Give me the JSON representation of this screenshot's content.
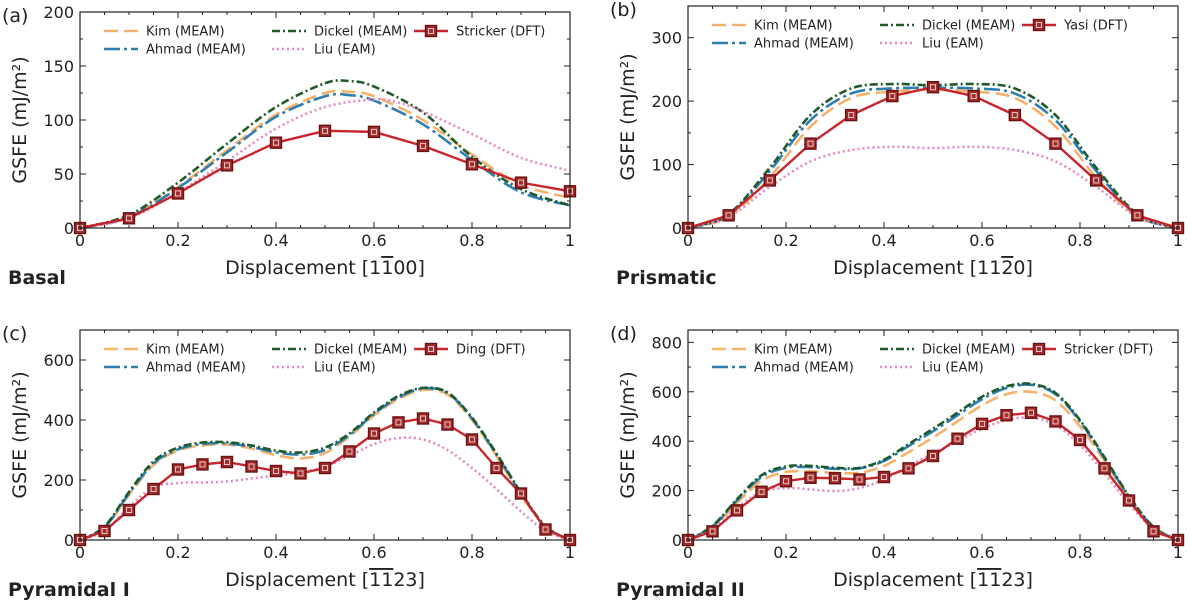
{
  "chart_data": [
    {
      "type": "line",
      "panel_letter": "(a)",
      "panel_name": "Basal",
      "xlabel": "Displacement [1̅1̅00]",
      "xlabel_parts": [
        "Displacement [1",
        "1",
        "00]"
      ],
      "xlabel_overbar_index": 1,
      "ylabel": "GSFE (mJ/m²)",
      "xlim": [
        0,
        1
      ],
      "ylim": [
        0,
        200
      ],
      "xticks": [
        "0",
        "0.2",
        "0.4",
        "0.6",
        "0.8",
        "1"
      ],
      "yticks": [
        "0",
        "50",
        "100",
        "150",
        "200"
      ],
      "legend_location": "top",
      "series": [
        {
          "name": "Kim (MEAM)",
          "style": "kim",
          "x": [
            0,
            0.1,
            0.2,
            0.3,
            0.4,
            0.5,
            0.55,
            0.6,
            0.7,
            0.8,
            0.9,
            1
          ],
          "y": [
            0,
            10,
            38,
            72,
            105,
            125,
            126,
            122,
            100,
            68,
            40,
            28
          ]
        },
        {
          "name": "Ahmad (MEAM)",
          "style": "ahmad",
          "x": [
            0,
            0.1,
            0.2,
            0.3,
            0.4,
            0.5,
            0.55,
            0.6,
            0.7,
            0.8,
            0.9,
            1
          ],
          "y": [
            0,
            10,
            37,
            70,
            103,
            122,
            123,
            118,
            96,
            63,
            33,
            21
          ]
        },
        {
          "name": "Dickel (MEAM)",
          "style": "dickel",
          "x": [
            0,
            0.1,
            0.2,
            0.3,
            0.4,
            0.5,
            0.55,
            0.6,
            0.7,
            0.8,
            0.9,
            1
          ],
          "y": [
            0,
            12,
            42,
            78,
            112,
            134,
            136,
            131,
            107,
            66,
            36,
            21
          ]
        },
        {
          "name": "Liu (EAM)",
          "style": "liu",
          "x": [
            0,
            0.1,
            0.2,
            0.3,
            0.4,
            0.5,
            0.6,
            0.65,
            0.7,
            0.8,
            0.9,
            1
          ],
          "y": [
            0,
            9,
            33,
            62,
            92,
            112,
            119,
            116,
            108,
            87,
            65,
            53
          ]
        },
        {
          "name": "Stricker (DFT)",
          "style": "dft",
          "markers": true,
          "x": [
            0,
            0.1,
            0.2,
            0.3,
            0.4,
            0.5,
            0.6,
            0.7,
            0.8,
            0.9,
            1
          ],
          "y": [
            0,
            9,
            32,
            58,
            79,
            90,
            89,
            76,
            59,
            42,
            34
          ]
        }
      ]
    },
    {
      "type": "line",
      "panel_letter": "(b)",
      "panel_name": "Prismatic",
      "xlabel": "Displacement [112̅0]",
      "xlabel_parts": [
        "Displacement [11",
        "2",
        "0]"
      ],
      "xlabel_overbar_index": 1,
      "ylabel": "GSFE (mJ/m²)",
      "xlim": [
        0,
        1
      ],
      "ylim": [
        0,
        350
      ],
      "xticks": [
        "0",
        "0.2",
        "0.4",
        "0.6",
        "0.8",
        "1"
      ],
      "yticks": [
        "0",
        "100",
        "200",
        "300"
      ],
      "legend_location": "top",
      "series": [
        {
          "name": "Kim (MEAM)",
          "style": "kim",
          "x": [
            0,
            0.083,
            0.167,
            0.25,
            0.333,
            0.417,
            0.5,
            0.583,
            0.667,
            0.75,
            0.833,
            0.917,
            1
          ],
          "y": [
            0,
            18,
            80,
            160,
            205,
            215,
            218,
            215,
            205,
            160,
            80,
            18,
            0
          ]
        },
        {
          "name": "Ahmad (MEAM)",
          "style": "ahmad",
          "x": [
            0,
            0.083,
            0.167,
            0.25,
            0.333,
            0.417,
            0.5,
            0.583,
            0.667,
            0.75,
            0.833,
            0.917,
            1
          ],
          "y": [
            0,
            20,
            90,
            170,
            212,
            220,
            221,
            220,
            212,
            170,
            90,
            20,
            0
          ]
        },
        {
          "name": "Dickel (MEAM)",
          "style": "dickel",
          "x": [
            0,
            0.083,
            0.167,
            0.25,
            0.333,
            0.417,
            0.5,
            0.583,
            0.667,
            0.75,
            0.833,
            0.917,
            1
          ],
          "y": [
            0,
            22,
            95,
            178,
            220,
            227,
            225,
            227,
            220,
            178,
            95,
            22,
            0
          ]
        },
        {
          "name": "Liu (EAM)",
          "style": "liu",
          "x": [
            0,
            0.083,
            0.167,
            0.25,
            0.333,
            0.417,
            0.5,
            0.583,
            0.667,
            0.75,
            0.833,
            0.917,
            1
          ],
          "y": [
            0,
            18,
            65,
            105,
            123,
            128,
            126,
            128,
            123,
            105,
            65,
            18,
            0
          ]
        },
        {
          "name": "Yasi (DFT)",
          "style": "dft",
          "markers": true,
          "x": [
            0,
            0.083,
            0.167,
            0.25,
            0.333,
            0.417,
            0.5,
            0.583,
            0.667,
            0.75,
            0.833,
            0.917,
            1
          ],
          "y": [
            0,
            20,
            75,
            133,
            178,
            208,
            222,
            208,
            178,
            133,
            75,
            20,
            0
          ]
        }
      ]
    },
    {
      "type": "line",
      "panel_letter": "(c)",
      "panel_name": "Pyramidal I",
      "xlabel": "Displacement [1̅1̅ 23]",
      "xlabel_parts": [
        "Displacement [",
        "11",
        "23]"
      ],
      "xlabel_overbar_index": 1,
      "ylabel": "GSFE (mJ/m²)",
      "xlim": [
        0,
        1
      ],
      "ylim": [
        0,
        700
      ],
      "xticks": [
        "0",
        "0.2",
        "0.4",
        "0.6",
        "0.8",
        "1"
      ],
      "yticks": [
        "0",
        "200",
        "400",
        "600"
      ],
      "legend_location": "top",
      "series": [
        {
          "name": "Kim (MEAM)",
          "style": "kim",
          "x": [
            0,
            0.05,
            0.1,
            0.15,
            0.2,
            0.25,
            0.3,
            0.35,
            0.4,
            0.45,
            0.5,
            0.55,
            0.6,
            0.65,
            0.7,
            0.75,
            0.8,
            0.85,
            0.9,
            0.95,
            1
          ],
          "y": [
            0,
            40,
            150,
            250,
            298,
            315,
            318,
            305,
            283,
            272,
            290,
            345,
            415,
            470,
            500,
            485,
            400,
            280,
            150,
            45,
            0
          ]
        },
        {
          "name": "Ahmad (MEAM)",
          "style": "ahmad",
          "x": [
            0,
            0.05,
            0.1,
            0.15,
            0.2,
            0.25,
            0.3,
            0.35,
            0.4,
            0.45,
            0.5,
            0.55,
            0.6,
            0.65,
            0.7,
            0.75,
            0.8,
            0.85,
            0.9,
            0.95,
            1
          ],
          "y": [
            0,
            42,
            155,
            255,
            302,
            320,
            322,
            310,
            292,
            285,
            300,
            350,
            420,
            475,
            505,
            490,
            405,
            285,
            155,
            45,
            0
          ]
        },
        {
          "name": "Dickel (MEAM)",
          "style": "dickel",
          "x": [
            0,
            0.05,
            0.1,
            0.15,
            0.2,
            0.25,
            0.3,
            0.35,
            0.4,
            0.45,
            0.5,
            0.55,
            0.6,
            0.65,
            0.7,
            0.75,
            0.8,
            0.85,
            0.9,
            0.95,
            1
          ],
          "y": [
            0,
            45,
            160,
            262,
            308,
            325,
            326,
            315,
            298,
            292,
            308,
            355,
            425,
            480,
            507,
            492,
            408,
            288,
            158,
            46,
            0
          ]
        },
        {
          "name": "Liu (EAM)",
          "style": "liu",
          "x": [
            0,
            0.05,
            0.1,
            0.15,
            0.2,
            0.25,
            0.3,
            0.35,
            0.4,
            0.45,
            0.5,
            0.55,
            0.6,
            0.65,
            0.7,
            0.75,
            0.8,
            0.85,
            0.9,
            0.95,
            1
          ],
          "y": [
            0,
            30,
            110,
            175,
            190,
            192,
            195,
            205,
            215,
            225,
            245,
            280,
            320,
            340,
            335,
            300,
            240,
            170,
            95,
            30,
            0
          ]
        },
        {
          "name": "Ding (DFT)",
          "style": "dft",
          "markers": true,
          "x": [
            0,
            0.05,
            0.1,
            0.15,
            0.2,
            0.25,
            0.3,
            0.35,
            0.4,
            0.45,
            0.5,
            0.55,
            0.6,
            0.65,
            0.7,
            0.75,
            0.8,
            0.85,
            0.9,
            0.95,
            1
          ],
          "y": [
            0,
            30,
            100,
            170,
            235,
            252,
            260,
            245,
            230,
            222,
            240,
            295,
            355,
            392,
            405,
            385,
            335,
            240,
            155,
            35,
            0
          ]
        }
      ]
    },
    {
      "type": "line",
      "panel_letter": "(d)",
      "panel_name": "Pyramidal II",
      "xlabel": "Displacement [1̅1̅ 23]",
      "xlabel_parts": [
        "Displacement [",
        "11",
        "23]"
      ],
      "xlabel_overbar_index": 1,
      "ylabel": "GSFE (mJ/m²)",
      "xlim": [
        0,
        1
      ],
      "ylim": [
        0,
        850
      ],
      "xticks": [
        "0",
        "0.2",
        "0.4",
        "0.6",
        "0.8",
        "1"
      ],
      "yticks": [
        "0",
        "200",
        "400",
        "600",
        "800"
      ],
      "legend_location": "top",
      "series": [
        {
          "name": "Kim (MEAM)",
          "style": "kim",
          "x": [
            0,
            0.05,
            0.1,
            0.15,
            0.2,
            0.25,
            0.3,
            0.35,
            0.4,
            0.45,
            0.5,
            0.55,
            0.6,
            0.65,
            0.7,
            0.75,
            0.8,
            0.85,
            0.9,
            0.95,
            1
          ],
          "y": [
            0,
            50,
            150,
            240,
            275,
            278,
            272,
            272,
            300,
            355,
            415,
            480,
            545,
            590,
            600,
            565,
            460,
            320,
            170,
            50,
            0
          ]
        },
        {
          "name": "Ahmad (MEAM)",
          "style": "ahmad",
          "x": [
            0,
            0.05,
            0.1,
            0.15,
            0.2,
            0.25,
            0.3,
            0.35,
            0.4,
            0.45,
            0.5,
            0.55,
            0.6,
            0.65,
            0.7,
            0.75,
            0.8,
            0.85,
            0.9,
            0.95,
            1
          ],
          "y": [
            0,
            55,
            160,
            255,
            292,
            295,
            288,
            290,
            320,
            380,
            440,
            505,
            570,
            615,
            628,
            590,
            480,
            330,
            175,
            52,
            0
          ]
        },
        {
          "name": "Dickel (MEAM)",
          "style": "dickel",
          "x": [
            0,
            0.05,
            0.1,
            0.15,
            0.2,
            0.25,
            0.3,
            0.35,
            0.4,
            0.45,
            0.5,
            0.55,
            0.6,
            0.65,
            0.7,
            0.75,
            0.8,
            0.85,
            0.9,
            0.95,
            1
          ],
          "y": [
            0,
            57,
            165,
            262,
            298,
            300,
            292,
            292,
            325,
            388,
            450,
            515,
            580,
            622,
            632,
            595,
            485,
            335,
            178,
            53,
            0
          ]
        },
        {
          "name": "Liu (EAM)",
          "style": "liu",
          "x": [
            0,
            0.05,
            0.1,
            0.15,
            0.2,
            0.25,
            0.3,
            0.35,
            0.4,
            0.45,
            0.5,
            0.55,
            0.6,
            0.65,
            0.7,
            0.75,
            0.8,
            0.85,
            0.9,
            0.95,
            1
          ],
          "y": [
            0,
            45,
            130,
            195,
            210,
            205,
            198,
            210,
            245,
            300,
            350,
            400,
            450,
            485,
            495,
            465,
            385,
            270,
            145,
            45,
            0
          ]
        },
        {
          "name": "Stricker (DFT)",
          "style": "dft",
          "markers": true,
          "x": [
            0,
            0.05,
            0.1,
            0.15,
            0.2,
            0.25,
            0.3,
            0.35,
            0.4,
            0.45,
            0.5,
            0.55,
            0.6,
            0.65,
            0.7,
            0.75,
            0.8,
            0.85,
            0.9,
            0.95,
            1
          ],
          "y": [
            0,
            35,
            120,
            195,
            238,
            252,
            250,
            245,
            255,
            290,
            340,
            410,
            470,
            505,
            515,
            480,
            405,
            290,
            160,
            35,
            0
          ]
        }
      ]
    }
  ],
  "styles": {
    "kim": {
      "color": "#f5b26b",
      "dash": "14,6"
    },
    "ahmad": {
      "color": "#2e7fb0",
      "dash": "16,4,3,4"
    },
    "dickel": {
      "color": "#1f5a2a",
      "dash": "8,3,2,3"
    },
    "liu": {
      "color": "#e887c3",
      "dash": "2,3"
    },
    "dft": {
      "color": "#c8252c",
      "dash": ""
    }
  }
}
